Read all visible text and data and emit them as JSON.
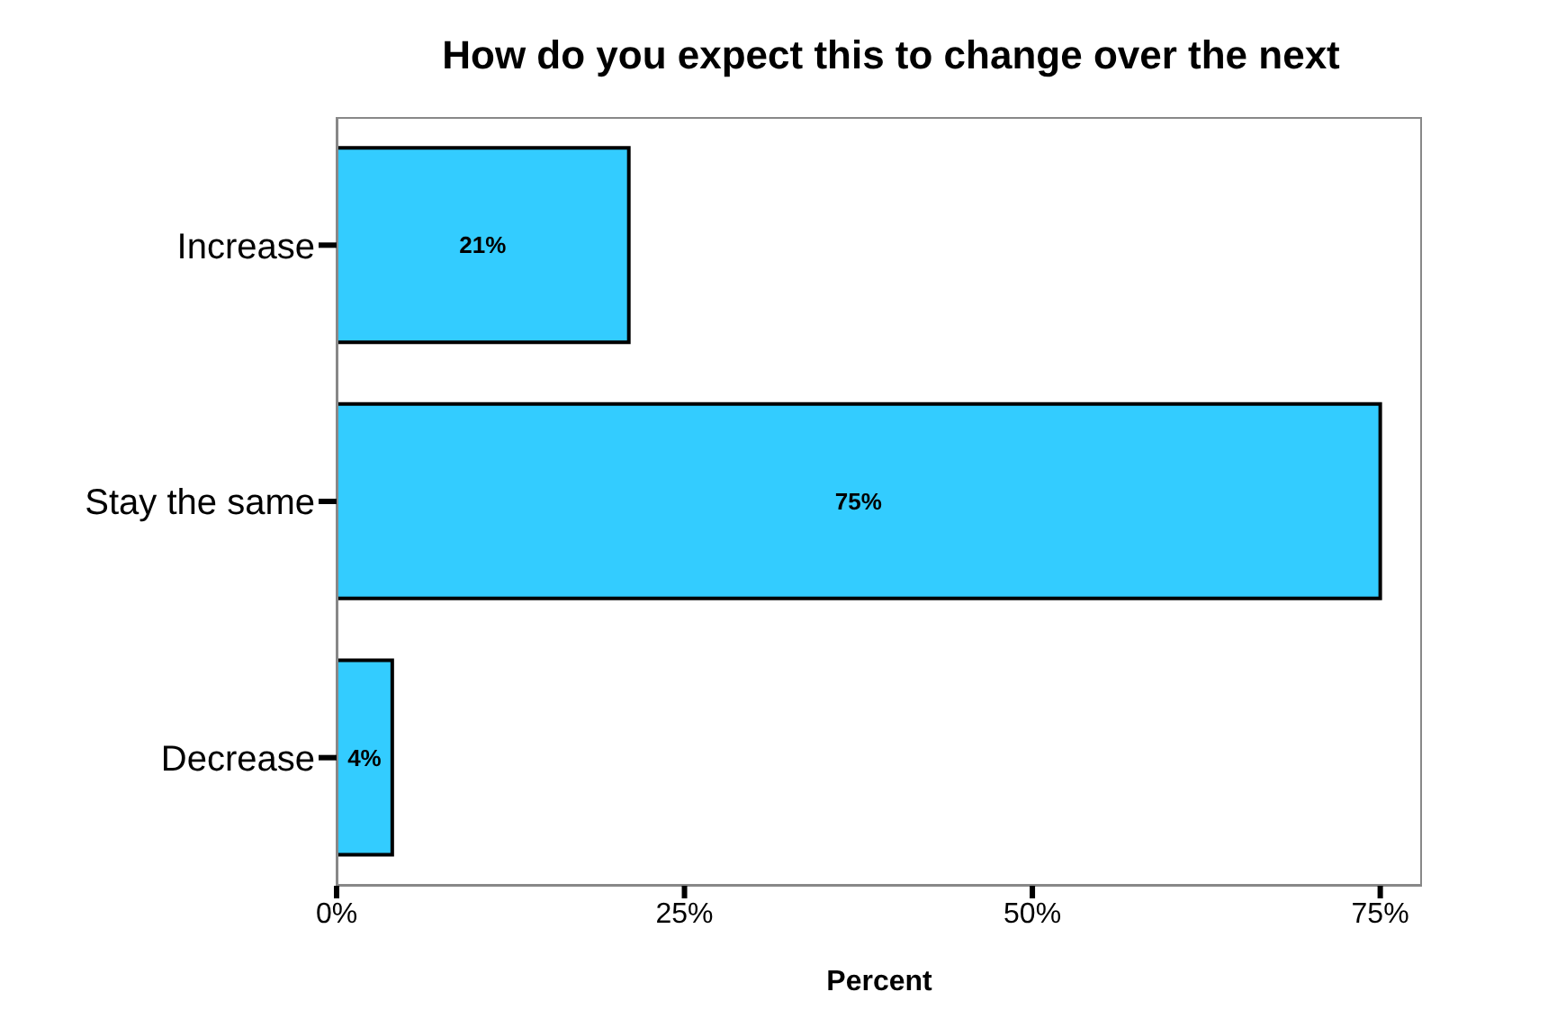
{
  "chart_data": {
    "type": "bar",
    "orientation": "horizontal",
    "title": "How do you expect this to change over the next",
    "xlabel": "Percent",
    "categories": [
      "Increase",
      "Stay the same",
      "Decrease"
    ],
    "values": [
      21,
      75,
      4
    ],
    "value_labels": [
      "21%",
      "75%",
      "4%"
    ],
    "color": "#33ccff",
    "xlim": [
      0,
      78
    ],
    "xticks": [
      {
        "value": 0,
        "label": "0%"
      },
      {
        "value": 25,
        "label": "25%"
      },
      {
        "value": 50,
        "label": "50%"
      },
      {
        "value": 75,
        "label": "75%"
      }
    ],
    "grid": false,
    "legend": false
  }
}
